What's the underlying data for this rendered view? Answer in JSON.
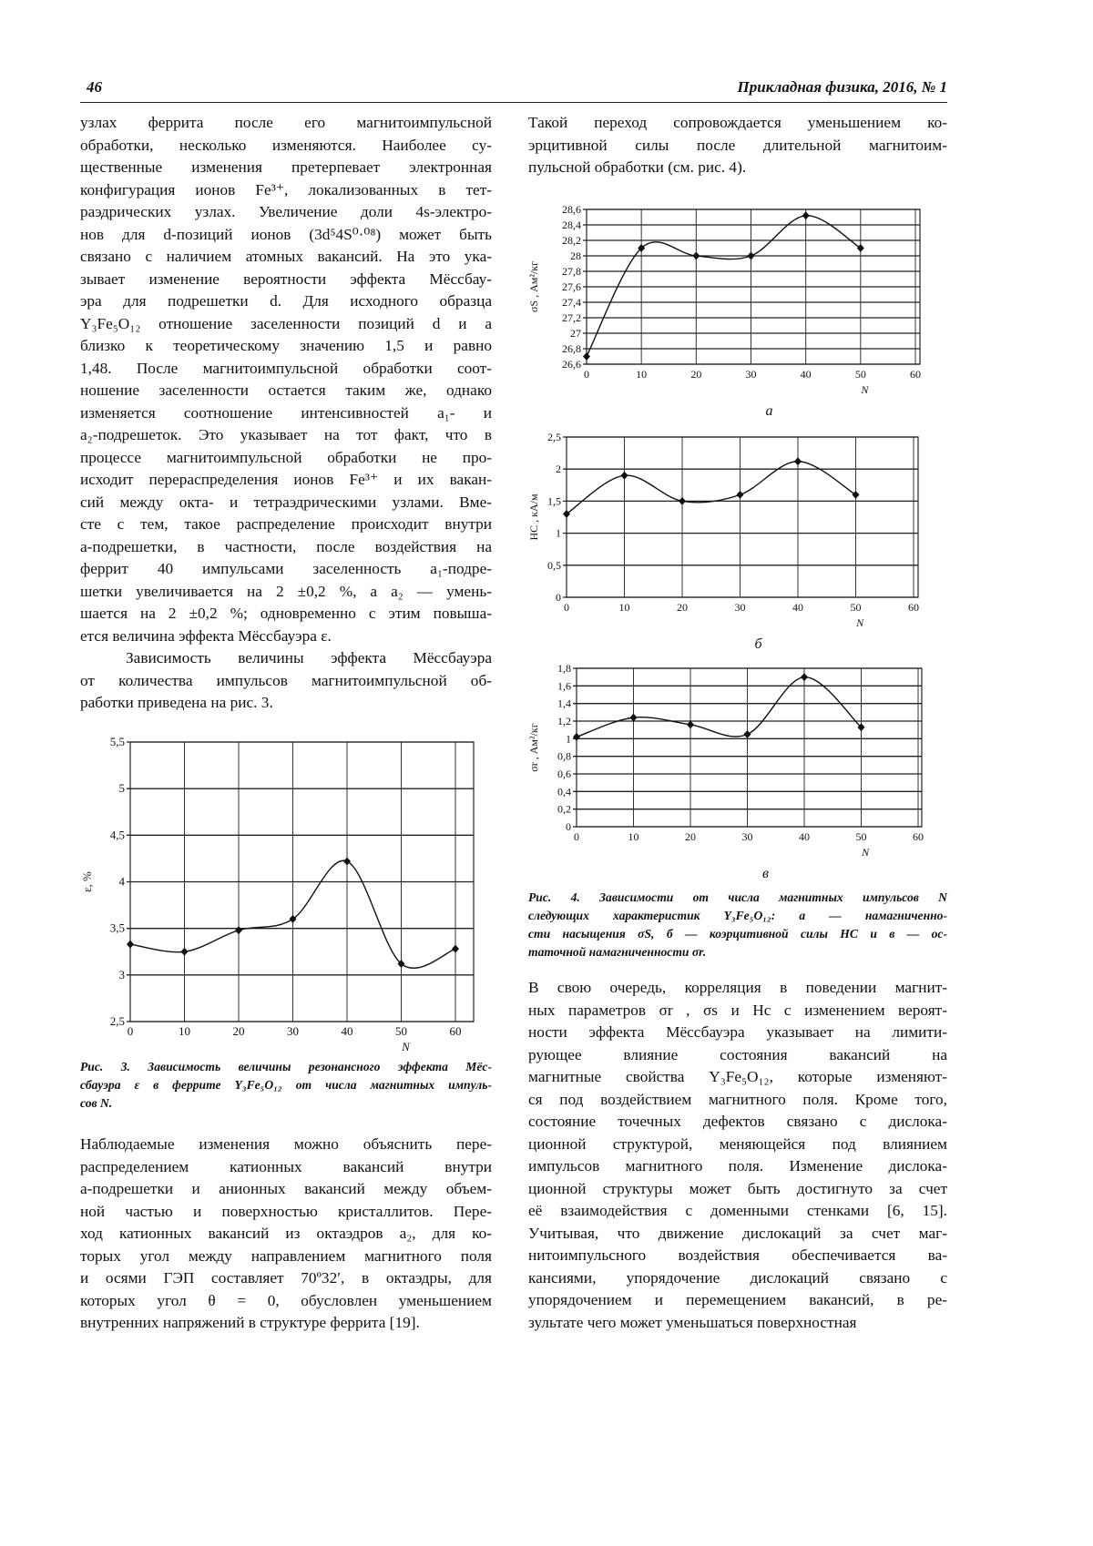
{
  "header": {
    "page_number": "46",
    "journal": "Прикладная физика, 2016, № 1"
  },
  "left_col": {
    "para1": [
      "узлах феррита после его магнитоимпульсной",
      "обработки, несколько изменяются. Наиболее су-",
      "щественные изменения претерпевает электронная",
      "конфигурация ионов Fe³⁺, локализованных в тет-",
      "раэдрических узлах. Увеличение доли 4s-электро-",
      "нов для d-позиций ионов (3d⁵4S⁰·⁰⁸) может быть",
      "связано с наличием атомных вакансий. На это ука-",
      "зывает изменение вероятности эффекта Мёссбау-",
      "эра для подрешетки d. Для исходного образца",
      "Y₃Fe₅O₁₂ отношение заселенности позиций d и a",
      "близко к теоретическому значению 1,5 и равно",
      "1,48. После магнитоимпульсной обработки соот-",
      "ношение заселенности остается таким же, однако",
      "изменяется соотношение интенсивностей a₁- и",
      "a₂-подрешеток. Это указывает на тот факт, что в",
      "процессе магнитоимпульсной обработки не про-",
      "исходит перераспределения ионов Fe³⁺ и их вакан-",
      "сий между окта- и тетраэдрическими узлами. Вме-",
      "сте с тем, такое распределение происходит внутри",
      "a-подрешетки, в частности, после воздействия на",
      "феррит 40 импульсами заселенность a₁-подре-",
      "шетки увеличивается на 2 ±0,2 %, а a₂ — умень-",
      "шается на 2 ±0,2 %; одновременно с этим повыша-",
      "ется величина эффекта Мёссбауэра ε."
    ],
    "para2": [
      "Зависимость величины эффекта Мёссбауэра",
      "от количества импульсов магнитоимпульсной об-",
      "работки приведена на рис. 3."
    ],
    "fig3_caption": [
      "Рис. 3. Зависимость величины резонансного эффекта Мёс-",
      "сбауэра ε в феррите Y₃Fe₅O₁₂ от числа магнитных импуль-",
      "сов N."
    ],
    "para3": [
      "Наблюдаемые изменения можно объяснить пере-",
      "распределением катионных вакансий внутри",
      "a-подрешетки и анионных вакансий между объем-",
      "ной частью и поверхностью кристаллитов. Пере-",
      "ход катионных вакансий из октаэдров a₂, для ко-",
      "торых угол между направлением магнитного поля",
      "и осями ГЭП составляет 70º32′, в октаэдры, для",
      "которых угол θ = 0, обусловлен уменьшением",
      "внутренних напряжений в структуре феррита [19]."
    ]
  },
  "right_col": {
    "para1": [
      "Такой переход сопровождается уменьшением ко-",
      "эрцитивной силы после длительной магнитоим-",
      "пульсной обработки (см. рис. 4)."
    ],
    "fig4_caption": [
      "Рис. 4. Зависимости от числа магнитных импульсов N",
      "следующих характеристик Y₃Fe₅O₁₂: а — намагниченно-",
      "сти насыщения σS, б — коэрцитивной силы HC и в — ос-",
      "таточной намагниченности σr."
    ],
    "para2": [
      "В свою очередь, корреляция в поведении магнит-",
      "ных параметров σr , σs и Hc с изменением вероят-",
      "ности эффекта Мёссбауэра указывает на лимити-",
      "рующее влияние состояния вакансий на",
      "магнитные свойства Y₃Fe₅O₁₂, которые изменяют-",
      "ся под воздействием магнитного поля. Кроме того,",
      "состояние точечных дефектов связано с дислока-",
      "ционной структурой, меняющейся под влиянием",
      "импульсов магнитного поля. Изменение дислока-",
      "ционной структуры может быть достигнуто за счет",
      "её взаимодействия с доменными стенками [6, 15].",
      "Учитывая, что движение дислокаций за счет маг-",
      "нитоимпульсного воздействия обеспечивается ва-",
      "кансиями, упорядочение дислокаций связано с",
      "упорядочением и перемещением вакансий, в ре-",
      "зультате чего может уменьшаться поверхностная"
    ]
  },
  "chart_data": [
    {
      "id": "fig3",
      "type": "line",
      "xlabel": "N",
      "ylabel": "ε, %",
      "x": [
        0,
        10,
        20,
        30,
        40,
        50,
        60
      ],
      "values": [
        3.33,
        3.25,
        3.48,
        3.6,
        4.22,
        3.12,
        3.28
      ],
      "xlim": [
        0,
        60
      ],
      "ylim": [
        2.5,
        5.5
      ],
      "xticks": [
        "0",
        "10",
        "20",
        "30",
        "40",
        "50",
        "60"
      ],
      "yticks": [
        "2,5",
        "3",
        "3,5",
        "4",
        "4,5",
        "5",
        "5,5"
      ],
      "grid": true,
      "sublabel": ""
    },
    {
      "id": "fig4a",
      "type": "line",
      "xlabel": "N",
      "ylabel": "σS , Ам²/кг",
      "x": [
        0,
        10,
        20,
        30,
        40,
        50
      ],
      "values": [
        26.7,
        28.1,
        28.0,
        28.0,
        28.52,
        28.1
      ],
      "xlim": [
        0,
        60
      ],
      "ylim": [
        26.6,
        28.6
      ],
      "xticks": [
        "0",
        "10",
        "20",
        "30",
        "40",
        "50",
        "60"
      ],
      "yticks": [
        "26,6",
        "26,8",
        "27",
        "27,2",
        "27,4",
        "27,6",
        "27,8",
        "28",
        "28,2",
        "28,4",
        "28,6"
      ],
      "grid": true,
      "sublabel": "а"
    },
    {
      "id": "fig4b",
      "type": "line",
      "xlabel": "N",
      "ylabel": "HC , кА/м",
      "x": [
        0,
        10,
        20,
        30,
        40,
        50
      ],
      "values": [
        1.3,
        1.9,
        1.5,
        1.6,
        2.12,
        1.6
      ],
      "xlim": [
        0,
        60
      ],
      "ylim": [
        0,
        2.5
      ],
      "xticks": [
        "0",
        "10",
        "20",
        "30",
        "40",
        "50",
        "60"
      ],
      "yticks": [
        "0",
        "0,5",
        "1",
        "1,5",
        "2",
        "2,5"
      ],
      "grid": true,
      "sublabel": "б"
    },
    {
      "id": "fig4c",
      "type": "line",
      "xlabel": "N",
      "ylabel": "σr , Ам²/кг",
      "x": [
        0,
        10,
        20,
        30,
        40,
        50
      ],
      "values": [
        1.02,
        1.24,
        1.16,
        1.05,
        1.7,
        1.13
      ],
      "xlim": [
        0,
        60
      ],
      "ylim": [
        0,
        1.8
      ],
      "xticks": [
        "0",
        "10",
        "20",
        "30",
        "40",
        "50",
        "60"
      ],
      "yticks": [
        "0",
        "0,2",
        "0,4",
        "0,6",
        "0,8",
        "1",
        "1,2",
        "1,4",
        "1,6",
        "1,8"
      ],
      "grid": true,
      "sublabel": "в"
    }
  ]
}
